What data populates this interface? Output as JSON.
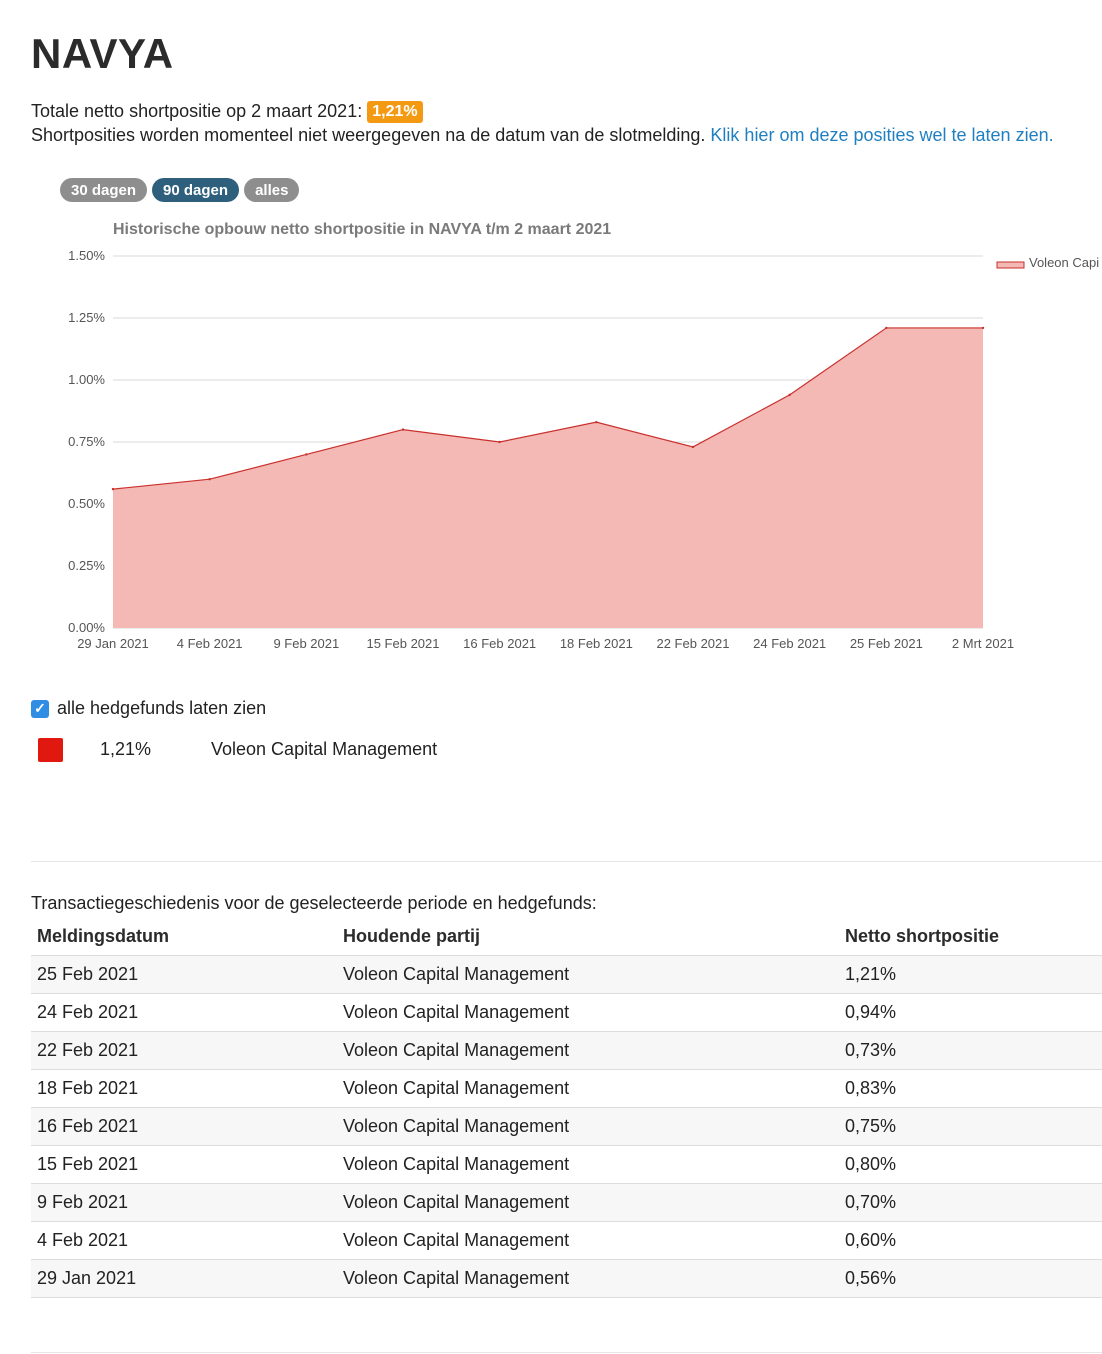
{
  "title": "NAVYA",
  "summary": {
    "prefix": "Totale netto shortpositie op 2 maart 2021:",
    "badge": "1,21%"
  },
  "notice": {
    "text": "Shortposities worden momenteel niet weergegeven na de datum van de slotmelding.",
    "link": "Klik hier om deze posities wel te laten zien."
  },
  "range_buttons": [
    "30 dagen",
    "90 dagen",
    "alles"
  ],
  "colors": {
    "badge": "#f39a12",
    "active_pill": "#2e5f7c",
    "inactive_pill": "#8e8e8e",
    "series_fill": "#f4b8b5",
    "series_line": "#c9302c",
    "link": "#1f7fc0"
  },
  "chart_data": {
    "type": "area",
    "title": "Historische opbouw netto shortpositie in NAVYA t/m 2 maart 2021",
    "x": [
      "29 Jan 2021",
      "4 Feb 2021",
      "9 Feb 2021",
      "15 Feb 2021",
      "16 Feb 2021",
      "18 Feb 2021",
      "22 Feb 2021",
      "24 Feb 2021",
      "25 Feb 2021",
      "2 Mrt 2021"
    ],
    "series": [
      {
        "name": "Voleon Capi",
        "values": [
          0.56,
          0.6,
          0.7,
          0.8,
          0.75,
          0.83,
          0.73,
          0.94,
          1.21,
          1.21
        ]
      }
    ],
    "yticks": [
      "0.00%",
      "0.25%",
      "0.50%",
      "0.75%",
      "1.00%",
      "1.25%",
      "1.50%"
    ],
    "ylim": [
      0,
      1.5
    ],
    "grid": true,
    "legend": "top-right"
  },
  "checkbox": {
    "label": "alle hedgefunds laten zien",
    "checked": true
  },
  "funds": [
    {
      "pct": "1,21%",
      "name": "Voleon Capital Management"
    }
  ],
  "table": {
    "caption": "Transactiegeschiedenis voor de geselecteerde periode en hedgefunds:",
    "headers": [
      "Meldingsdatum",
      "Houdende partij",
      "Netto shortpositie"
    ],
    "rows": [
      [
        "25 Feb 2021",
        "Voleon Capital Management",
        "1,21%"
      ],
      [
        "24 Feb 2021",
        "Voleon Capital Management",
        "0,94%"
      ],
      [
        "22 Feb 2021",
        "Voleon Capital Management",
        "0,73%"
      ],
      [
        "18 Feb 2021",
        "Voleon Capital Management",
        "0,83%"
      ],
      [
        "16 Feb 2021",
        "Voleon Capital Management",
        "0,75%"
      ],
      [
        "15 Feb 2021",
        "Voleon Capital Management",
        "0,80%"
      ],
      [
        "9 Feb 2021",
        "Voleon Capital Management",
        "0,70%"
      ],
      [
        "4 Feb 2021",
        "Voleon Capital Management",
        "0,60%"
      ],
      [
        "29 Jan 2021",
        "Voleon Capital Management",
        "0,56%"
      ]
    ]
  }
}
